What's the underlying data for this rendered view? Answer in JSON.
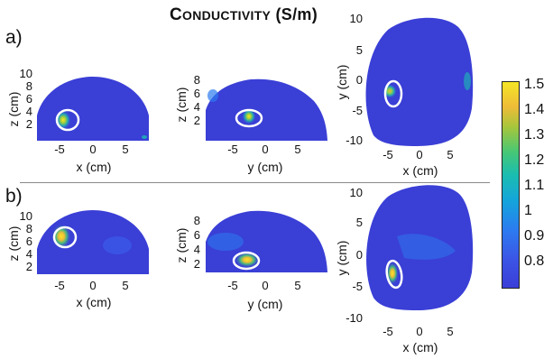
{
  "figure": {
    "title_first": "C",
    "title_rest": "ONDUCTIVITY",
    "title_units": " (S/m)",
    "row_labels": [
      "a)",
      "b)"
    ]
  },
  "colors": {
    "background_low": "#3a3fd6",
    "mid_cyan": "#1bbdb0",
    "high_yellow": "#f5e626",
    "annotation_ellipse": "#ffffff"
  },
  "plots": {
    "a_xz": {
      "xlabel": "x (cm)",
      "ylabel": "z (cm)",
      "xticks": [
        "-5",
        "0",
        "5"
      ],
      "yticks": [
        "10",
        "8",
        "6",
        "4",
        "2"
      ]
    },
    "a_yz": {
      "xlabel": "y (cm)",
      "ylabel": "z (cm)",
      "xticks": [
        "-5",
        "0",
        "5"
      ],
      "yticks": [
        "8",
        "6",
        "4",
        "2"
      ]
    },
    "a_xy": {
      "xlabel": "x (cm)",
      "ylabel": "y (cm)",
      "xticks": [
        "-5",
        "0",
        "5"
      ],
      "yticks": [
        "10",
        "5",
        "0",
        "-5",
        "-10"
      ]
    },
    "b_xz": {
      "xlabel": "x (cm)",
      "ylabel": "z (cm)",
      "xticks": [
        "-5",
        "0",
        "5"
      ],
      "yticks": [
        "10",
        "8",
        "6",
        "4",
        "2"
      ]
    },
    "b_yz": {
      "xlabel": "y (cm)",
      "ylabel": "z (cm)",
      "xticks": [
        "-5",
        "0",
        "5"
      ],
      "yticks": [
        "8",
        "6",
        "4",
        "2"
      ]
    },
    "b_xy": {
      "xlabel": "x (cm)",
      "ylabel": "y (cm)",
      "xticks": [
        "-5",
        "0",
        "5"
      ],
      "yticks": [
        "10",
        "5",
        "0",
        "-5",
        "-10"
      ]
    }
  },
  "colorbar": {
    "range": [
      0.75,
      1.5
    ],
    "ticks": [
      "1.5",
      "1.4",
      "1.3",
      "1.2",
      "1.1",
      "1",
      "0.9",
      "0.8"
    ]
  }
}
